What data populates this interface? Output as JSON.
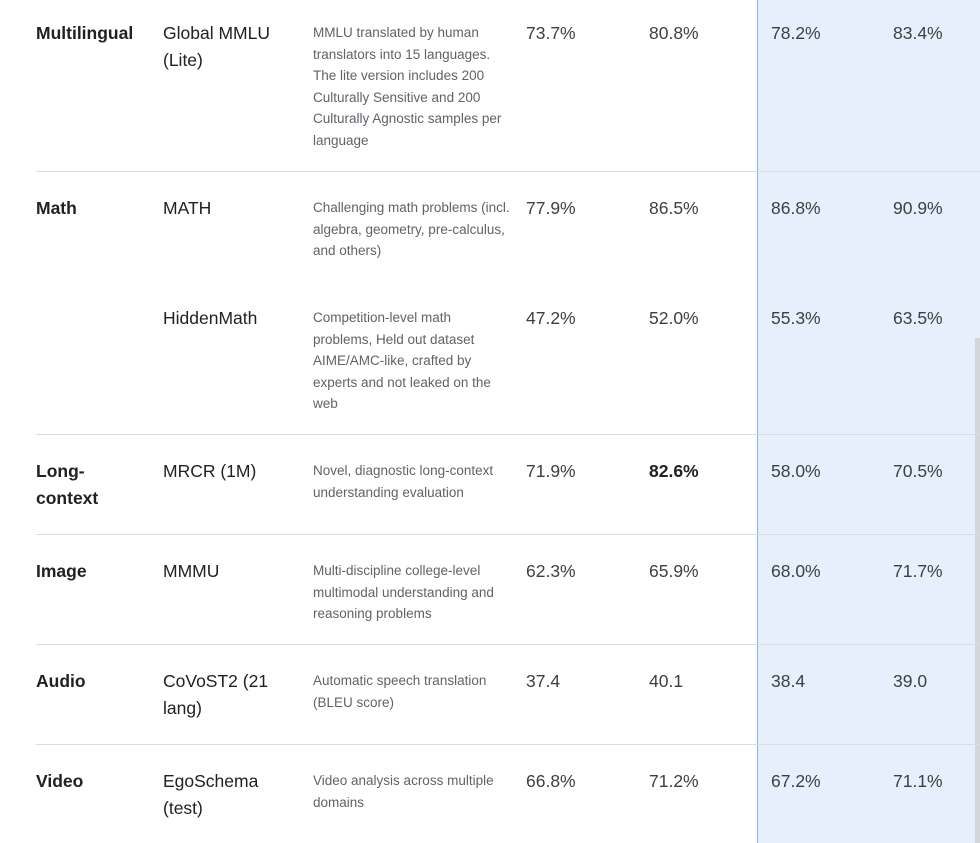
{
  "rows": [
    {
      "category": "Multilingual",
      "benchmark": "Global MMLU (Lite)",
      "description": "MMLU translated by human translators into 15 languages. The lite version includes 200 Culturally Sensitive and 200 Culturally Agnostic samples per language",
      "scores": [
        "73.7%",
        "80.8%",
        "78.2%",
        "83.4%"
      ]
    },
    {
      "category": "Math",
      "benchmark": "MATH",
      "description": "Challenging math problems (incl. algebra, geometry, pre-calculus, and others)",
      "scores": [
        "77.9%",
        "86.5%",
        "86.8%",
        "90.9%"
      ]
    },
    {
      "category": "",
      "benchmark": "HiddenMath",
      "description": "Competition-level math problems, Held out dataset AIME/AMC-like, crafted by experts and not leaked on the web",
      "scores": [
        "47.2%",
        "52.0%",
        "55.3%",
        "63.5%"
      ]
    },
    {
      "category": "Long-context",
      "benchmark": "MRCR (1M)",
      "description": "Novel, diagnostic long-context understanding evaluation",
      "scores": [
        "71.9%",
        "82.6%",
        "58.0%",
        "70.5%"
      ]
    },
    {
      "category": "Image",
      "benchmark": "MMMU",
      "description": "Multi-discipline college-level multimodal understanding and reasoning problems",
      "scores": [
        "62.3%",
        "65.9%",
        "68.0%",
        "71.7%"
      ]
    },
    {
      "category": "Audio",
      "benchmark": "CoVoST2 (21 lang)",
      "description": "Automatic speech translation (BLEU score)",
      "scores": [
        "37.4",
        "40.1",
        "38.4",
        "39.0"
      ]
    },
    {
      "category": "Video",
      "benchmark": "EgoSchema (test)",
      "description": "Video analysis across multiple domains",
      "scores": [
        "66.8%",
        "71.2%",
        "67.2%",
        "71.1%"
      ]
    }
  ],
  "colors": {
    "highlight_column_bg": "#e8effc",
    "highlight_column_border": "#8ab0f0",
    "divider": "#dadce0"
  }
}
